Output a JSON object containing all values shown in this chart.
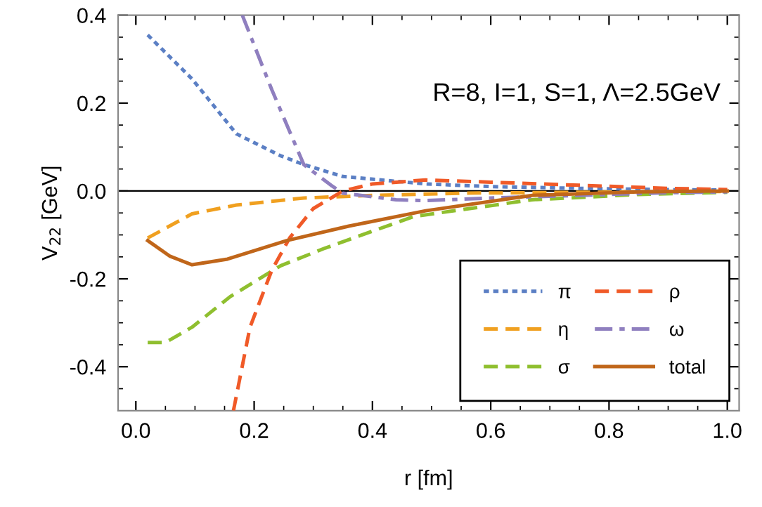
{
  "chart_data": {
    "type": "line",
    "xlabel": "r [fm]",
    "ylabel": "V$_{22}$ [GeV]",
    "annotations": [
      "R=8, I=1, S=1, Λ=2.5GeV"
    ],
    "xlim": [
      -0.03,
      1.02
    ],
    "ylim": [
      -0.5,
      0.4
    ],
    "xticks": [
      {
        "value": 0,
        "label": "0.0"
      },
      0.2,
      0.4,
      0.6,
      0.8,
      {
        "value": 1,
        "label": "1.0"
      }
    ],
    "yticks": [
      -0.4,
      -0.2,
      {
        "value": 0,
        "label": "0.0"
      },
      0.2,
      0.4
    ],
    "grid": false,
    "legend": "bottom right",
    "ref_lines": [
      {
        "axis": "y",
        "value": 0,
        "color": "#000000",
        "line_style": "solid"
      }
    ],
    "series": [
      {
        "name": "π",
        "color": "#5b7fc4",
        "line_style": "dotted",
        "x": [
          0.02,
          0.095,
          0.17,
          0.245,
          0.284,
          0.35,
          0.49,
          0.6,
          0.75,
          0.9,
          1.0
        ],
        "values": [
          0.355,
          0.255,
          0.13,
          0.08,
          0.06,
          0.033,
          0.016,
          0.01,
          0.006,
          0.003,
          0.002
        ]
      },
      {
        "name": "η",
        "color": "#f0a020",
        "line_style": "dashed",
        "x": [
          0.02,
          0.095,
          0.17,
          0.284,
          0.4,
          0.55,
          0.75,
          1.0
        ],
        "values": [
          -0.107,
          -0.052,
          -0.032,
          -0.016,
          -0.01,
          -0.005,
          -0.003,
          -0.001
        ]
      },
      {
        "name": "σ",
        "color": "#8fbf2f",
        "line_style": "dashed",
        "x": [
          0.02,
          0.05,
          0.095,
          0.16,
          0.245,
          0.32,
          0.47,
          0.67,
          0.85,
          1.0
        ],
        "values": [
          -0.345,
          -0.345,
          -0.31,
          -0.24,
          -0.17,
          -0.13,
          -0.058,
          -0.02,
          -0.008,
          -0.003
        ]
      },
      {
        "name": "ρ",
        "color": "#f05a28",
        "line_style": "dashed",
        "x": [
          0.165,
          0.193,
          0.23,
          0.26,
          0.3,
          0.35,
          0.4,
          0.49,
          0.6,
          0.75,
          0.9,
          1.0
        ],
        "values": [
          -0.5,
          -0.31,
          -0.18,
          -0.107,
          -0.04,
          0.0,
          0.016,
          0.025,
          0.02,
          0.013,
          0.006,
          0.003
        ]
      },
      {
        "name": "ω",
        "color": "#8f7fbf",
        "line_style": "dashdot",
        "x": [
          0.18,
          0.23,
          0.284,
          0.33,
          0.35,
          0.44,
          0.49,
          0.6,
          0.75,
          0.9,
          1.0
        ],
        "values": [
          0.4,
          0.23,
          0.06,
          0.013,
          -0.005,
          -0.02,
          -0.022,
          -0.016,
          -0.01,
          -0.004,
          -0.002
        ]
      },
      {
        "name": "total",
        "color": "#c0661a",
        "line_style": "solid",
        "x": [
          0.02,
          0.057,
          0.095,
          0.155,
          0.255,
          0.36,
          0.49,
          0.67,
          0.85,
          1.0
        ],
        "values": [
          -0.113,
          -0.148,
          -0.168,
          -0.155,
          -0.113,
          -0.08,
          -0.045,
          -0.01,
          -0.002,
          0.0
        ]
      }
    ]
  }
}
